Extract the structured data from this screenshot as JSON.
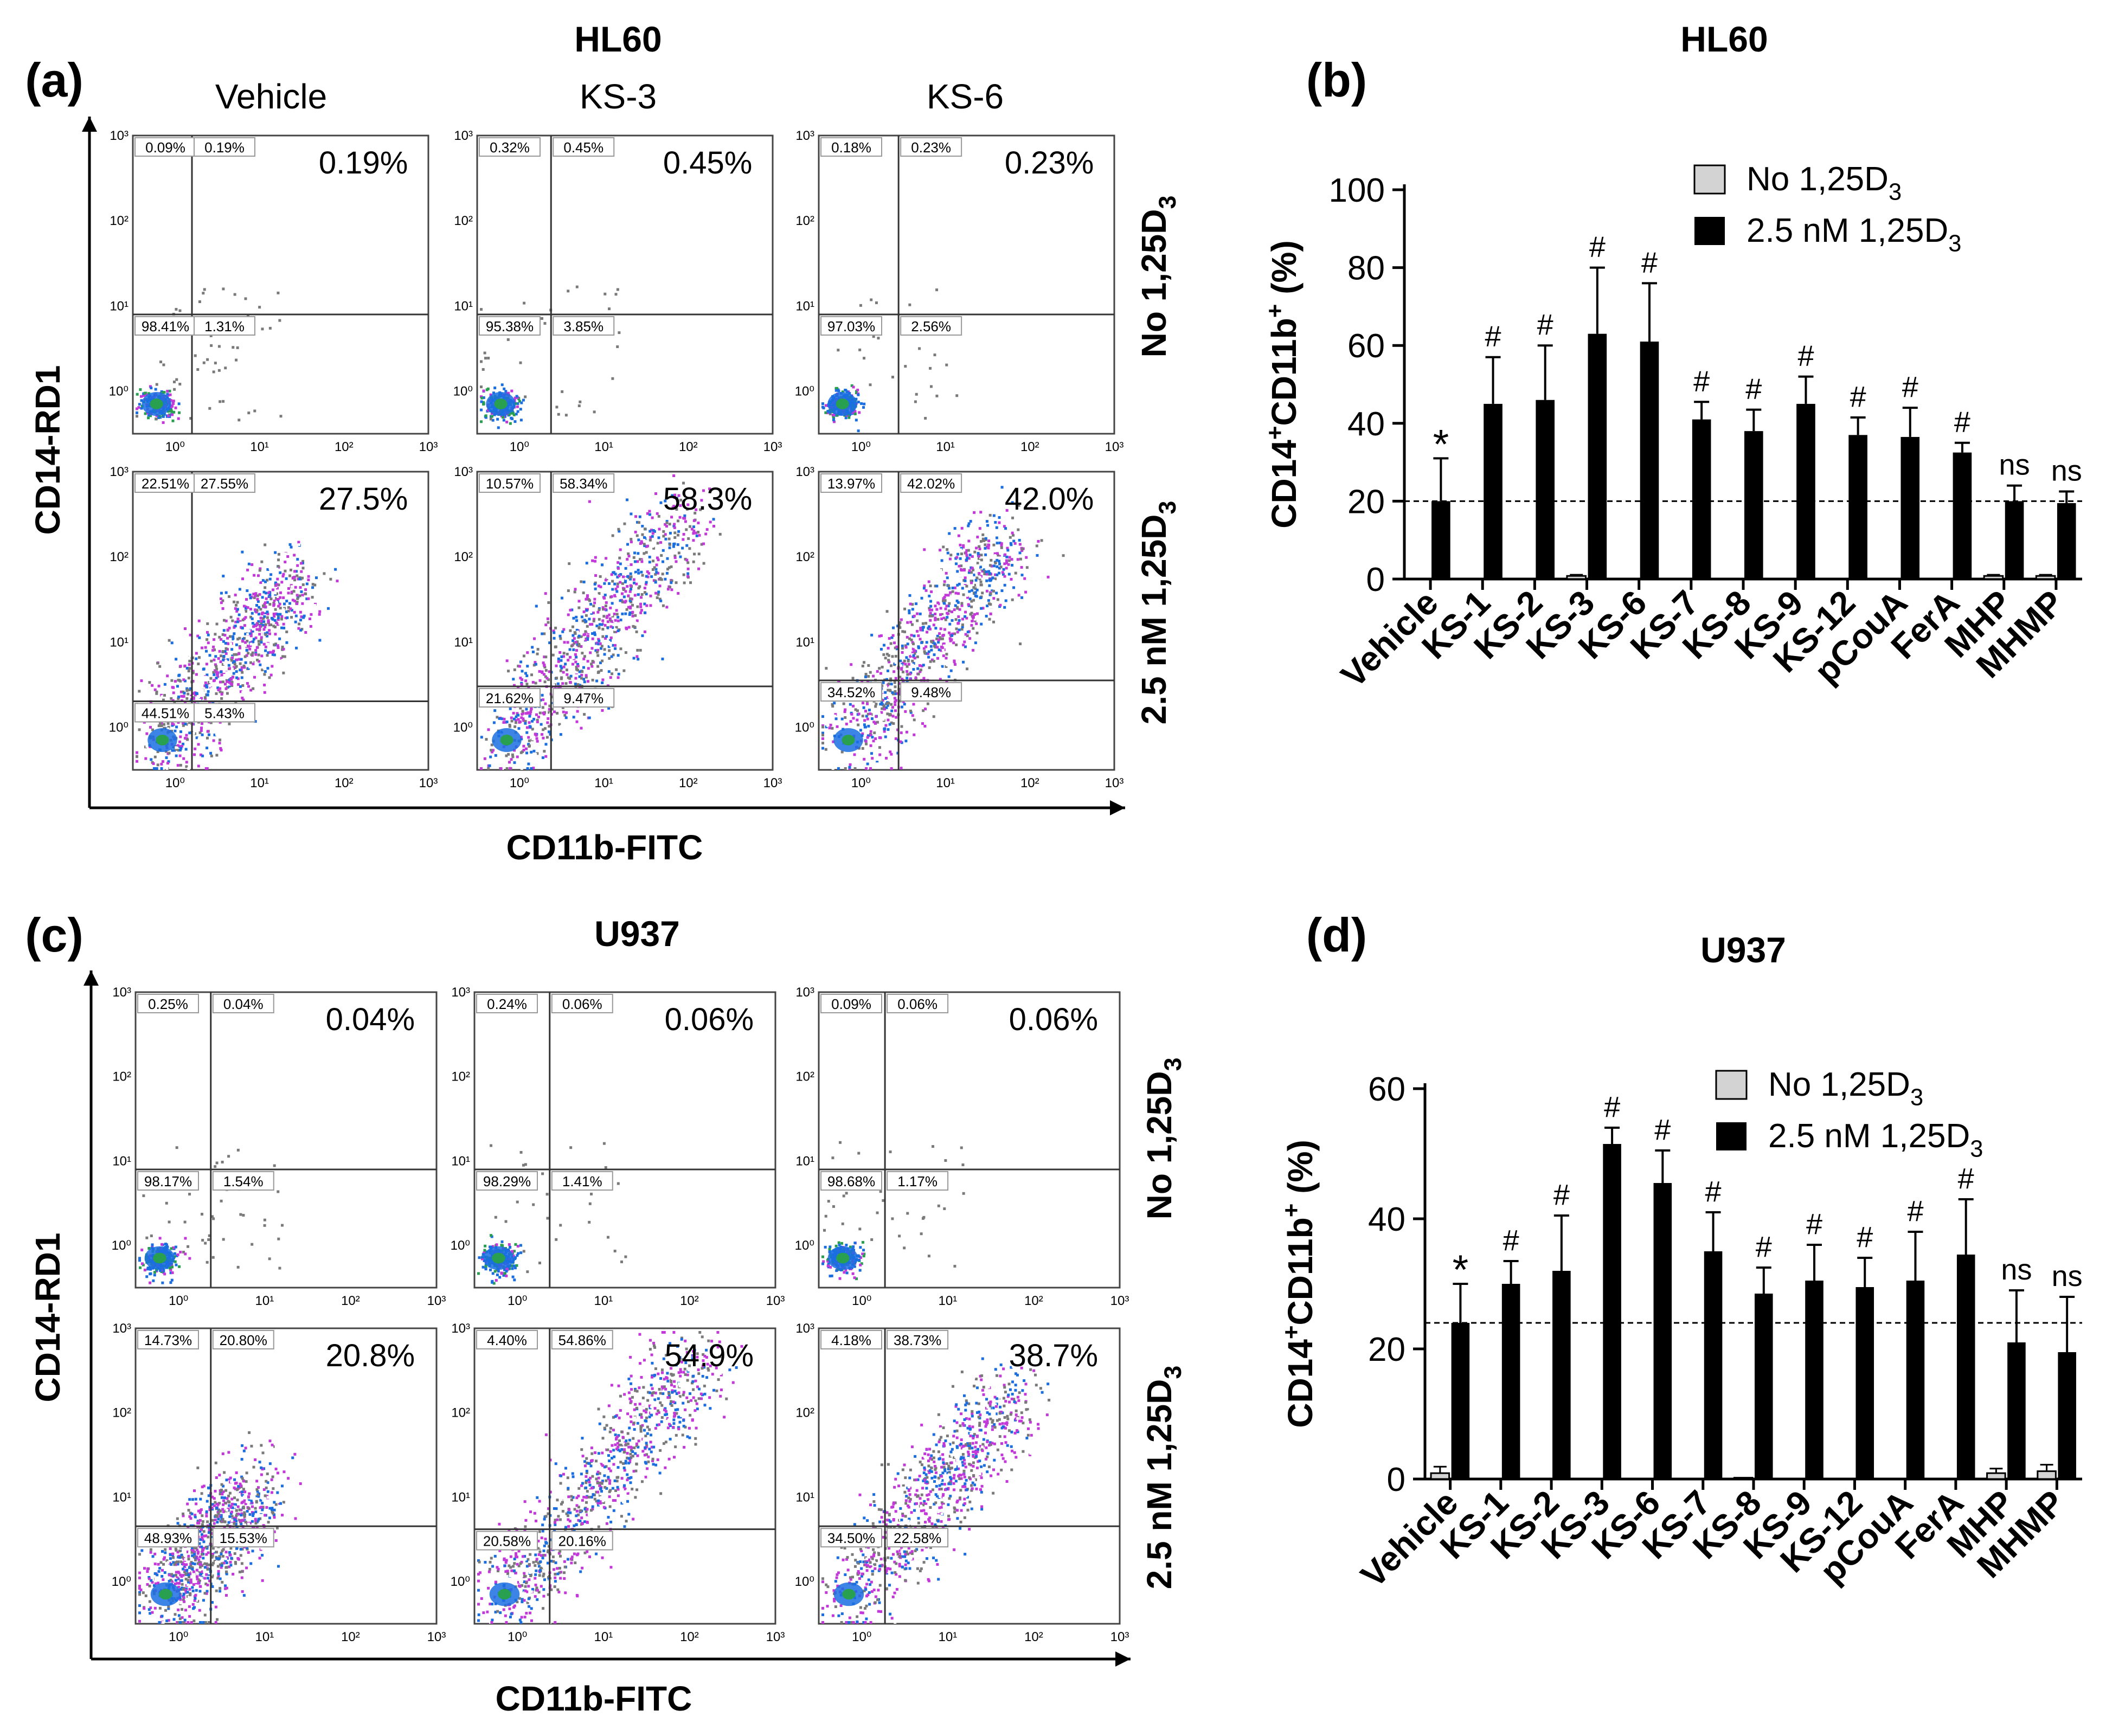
{
  "panels": {
    "a": {
      "letter": "(a)",
      "title": "HL60"
    },
    "b": {
      "letter": "(b)",
      "title": "HL60"
    },
    "c": {
      "letter": "(c)",
      "title": "U937"
    },
    "d": {
      "letter": "(d)",
      "title": "U937"
    }
  },
  "flow": {
    "treatments": [
      "Vehicle",
      "KS-3",
      "KS-6"
    ],
    "row_labels": {
      "none_main": "No 1,25D",
      "sub": "3",
      "treated_main": "2.5 nM 1,25D"
    },
    "x_axis": "CD11b-FITC",
    "y_axis": "CD14-RD1",
    "tick_labels": [
      "10⁰",
      "10¹",
      "10²",
      "10³"
    ],
    "colors": {
      "dense": "#1a6ee0",
      "mid": "#c238d8",
      "sparse": "#7a7a7a",
      "core": "#28a050"
    }
  },
  "chart_data": [
    {
      "type": "flow_cytometry_dot_plots",
      "panel": "a",
      "cell_line": "HL60",
      "plots": [
        {
          "treatment": "Vehicle",
          "condition": "No 1,25D3",
          "big": "0.19%",
          "quadrants": [
            "0.09%",
            "0.19%",
            "98.41%",
            "1.31%"
          ]
        },
        {
          "treatment": "KS-3",
          "condition": "No 1,25D3",
          "big": "0.45%",
          "quadrants": [
            "0.32%",
            "0.45%",
            "95.38%",
            "3.85%"
          ]
        },
        {
          "treatment": "KS-6",
          "condition": "No 1,25D3",
          "big": "0.23%",
          "quadrants": [
            "0.18%",
            "0.23%",
            "97.03%",
            "2.56%"
          ]
        },
        {
          "treatment": "Vehicle",
          "condition": "2.5 nM 1,25D3",
          "big": "27.5%",
          "quadrants": [
            "22.51%",
            "27.55%",
            "44.51%",
            "5.43%"
          ]
        },
        {
          "treatment": "KS-3",
          "condition": "2.5 nM 1,25D3",
          "big": "58.3%",
          "quadrants": [
            "10.57%",
            "58.34%",
            "21.62%",
            "9.47%"
          ]
        },
        {
          "treatment": "KS-6",
          "condition": "2.5 nM 1,25D3",
          "big": "42.0%",
          "quadrants": [
            "13.97%",
            "42.02%",
            "34.52%",
            "9.48%"
          ]
        }
      ]
    },
    {
      "type": "bar",
      "panel": "b",
      "title": "HL60",
      "ylabel": "CD14+CD11b+ (%)",
      "ylim": [
        0,
        100
      ],
      "yticks": [
        0,
        20,
        40,
        60,
        80,
        100
      ],
      "categories": [
        "Vehicle",
        "KS-1",
        "KS-2",
        "KS-3",
        "KS-6",
        "KS-7",
        "KS-8",
        "KS-9",
        "KS-12",
        "pCouA",
        "FerA",
        "MHP",
        "MHMP"
      ],
      "series": [
        {
          "name": "No 1,25D3",
          "values": [
            0,
            0,
            0,
            0.8,
            0,
            0,
            0,
            0,
            0,
            0,
            0,
            0.8,
            0.8
          ],
          "errors": [
            0,
            0,
            0,
            0.3,
            0,
            0,
            0,
            0,
            0,
            0,
            0,
            0.3,
            0.3
          ]
        },
        {
          "name": "2.5 nM 1,25D3",
          "values": [
            20,
            45,
            46,
            63,
            61,
            41,
            38,
            45,
            37,
            36.5,
            32.5,
            20,
            19.5
          ],
          "errors": [
            11,
            12,
            14,
            17,
            15,
            4.5,
            5.5,
            7,
            4.5,
            7.5,
            2.5,
            4,
            3
          ]
        }
      ],
      "significance": [
        "*",
        "#",
        "#",
        "#",
        "#",
        "#",
        "#",
        "#",
        "#",
        "#",
        "#",
        "ns",
        "ns"
      ],
      "reference_line": 20,
      "legend": [
        {
          "label": "No 1,25D",
          "sub": "3"
        },
        {
          "label": "2.5 nM 1,25D",
          "sub": "3"
        }
      ]
    },
    {
      "type": "flow_cytometry_dot_plots",
      "panel": "c",
      "cell_line": "U937",
      "plots": [
        {
          "treatment": "Vehicle",
          "condition": "No 1,25D3",
          "big": "0.04%",
          "quadrants": [
            "0.25%",
            "0.04%",
            "98.17%",
            "1.54%"
          ]
        },
        {
          "treatment": "KS-3",
          "condition": "No 1,25D3",
          "big": "0.06%",
          "quadrants": [
            "0.24%",
            "0.06%",
            "98.29%",
            "1.41%"
          ]
        },
        {
          "treatment": "KS-6",
          "condition": "No 1,25D3",
          "big": "0.06%",
          "quadrants": [
            "0.09%",
            "0.06%",
            "98.68%",
            "1.17%"
          ]
        },
        {
          "treatment": "Vehicle",
          "condition": "2.5 nM 1,25D3",
          "big": "20.8%",
          "quadrants": [
            "14.73%",
            "20.80%",
            "48.93%",
            "15.53%"
          ]
        },
        {
          "treatment": "KS-3",
          "condition": "2.5 nM 1,25D3",
          "big": "54.9%",
          "quadrants": [
            "4.40%",
            "54.86%",
            "20.58%",
            "20.16%"
          ]
        },
        {
          "treatment": "KS-6",
          "condition": "2.5 nM 1,25D3",
          "big": "38.7%",
          "quadrants": [
            "4.18%",
            "38.73%",
            "34.50%",
            "22.58%"
          ]
        }
      ]
    },
    {
      "type": "bar",
      "panel": "d",
      "title": "U937",
      "ylabel": "CD14+CD11b+ (%)",
      "ylim": [
        0,
        60
      ],
      "yticks": [
        0,
        20,
        40,
        60
      ],
      "categories": [
        "Vehicle",
        "KS-1",
        "KS-2",
        "KS-3",
        "KS-6",
        "KS-7",
        "KS-8",
        "KS-9",
        "KS-12",
        "pCouA",
        "FerA",
        "MHP",
        "MHMP"
      ],
      "series": [
        {
          "name": "No 1,25D3",
          "values": [
            0.9,
            0,
            0,
            0,
            0,
            0,
            0.2,
            0,
            0,
            0,
            0,
            0.9,
            1.2
          ],
          "errors": [
            1,
            0,
            0,
            0,
            0,
            0,
            0,
            0,
            0,
            0,
            0,
            0.7,
            1
          ]
        },
        {
          "name": "2.5 nM 1,25D3",
          "values": [
            24,
            30,
            32,
            51.5,
            45.5,
            35,
            28.5,
            30.5,
            29.5,
            30.5,
            34.5,
            21,
            19.5
          ],
          "errors": [
            6,
            3.5,
            8.5,
            2.5,
            5,
            6,
            4,
            5.5,
            4.5,
            7.5,
            8.5,
            8,
            8.5
          ]
        }
      ],
      "significance": [
        "*",
        "#",
        "#",
        "#",
        "#",
        "#",
        "#",
        "#",
        "#",
        "#",
        "#",
        "ns",
        "ns"
      ],
      "reference_line": 24,
      "legend": [
        {
          "label": "No 1,25D",
          "sub": "3"
        },
        {
          "label": "2.5 nM 1,25D",
          "sub": "3"
        }
      ]
    }
  ]
}
